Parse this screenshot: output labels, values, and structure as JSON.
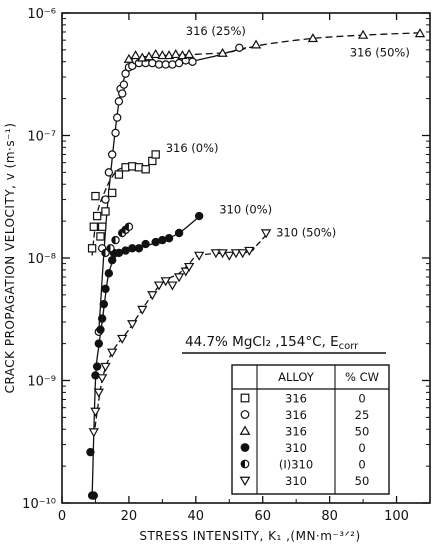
{
  "chart_data": {
    "type": "scatter",
    "title": "",
    "xlabel": "STRESS INTENSITY, K₁ ,(MN·m⁻³ᐟ²)",
    "ylabel": "CRACK PROPAGATION VELOCITY, v (m·s⁻¹)",
    "x_scale": "linear",
    "y_scale": "log",
    "xlim": [
      0,
      110
    ],
    "ylim": [
      1e-10,
      1e-06
    ],
    "grid": false,
    "x_ticks": [
      "0",
      "20",
      "40",
      "60",
      "80",
      "100"
    ],
    "y_ticks": [
      "10⁻¹⁰",
      "10⁻⁹",
      "10⁻⁸",
      "10⁻⁷",
      "10⁻⁶"
    ],
    "condition_label": "44.7% MgCl₂ ,154°C, E",
    "condition_sub": "corr",
    "legend": {
      "placement": "bottom-right",
      "headers": [
        "ALLOY",
        "% CW"
      ],
      "rows": [
        {
          "marker": "square",
          "alloy": "316",
          "cw": "0"
        },
        {
          "marker": "circle-open",
          "alloy": "316",
          "cw": "25"
        },
        {
          "marker": "triangle-up",
          "alloy": "316",
          "cw": "50"
        },
        {
          "marker": "circle-filled",
          "alloy": "310",
          "cw": "0"
        },
        {
          "marker": "circle-half",
          "alloy": "(I)310",
          "cw": "0"
        },
        {
          "marker": "triangle-down",
          "alloy": "310",
          "cw": "50"
        }
      ]
    },
    "series": [
      {
        "name": "316 (0%)",
        "label": "316 (0%)",
        "marker": "square",
        "points": [
          [
            9,
            1.2e-08
          ],
          [
            9.5,
            1.8e-08
          ],
          [
            10,
            3.2e-08
          ],
          [
            10.5,
            2.2e-08
          ],
          [
            11.5,
            1.5e-08
          ],
          [
            12,
            1.8e-08
          ],
          [
            13,
            2.4e-08
          ],
          [
            15,
            3.4e-08
          ],
          [
            17,
            4.8e-08
          ],
          [
            19,
            5.5e-08
          ],
          [
            21,
            5.6e-08
          ],
          [
            23,
            5.5e-08
          ],
          [
            25,
            5.3e-08
          ],
          [
            27,
            6.2e-08
          ],
          [
            28,
            7e-08
          ]
        ],
        "curve": [
          [
            9,
            1.05e-08
          ],
          [
            10.5,
            2.3e-08
          ],
          [
            13,
            3.6e-08
          ],
          [
            15,
            4.6e-08
          ],
          [
            17,
            5.3e-08
          ],
          [
            20,
            5.5e-08
          ],
          [
            24,
            5.5e-08
          ],
          [
            26,
            5.6e-08
          ],
          [
            28,
            6.5e-08
          ],
          [
            29,
            7e-08
          ]
        ]
      },
      {
        "name": "316 (25%)",
        "label": "316 (25%)",
        "marker": "circle-open",
        "points": [
          [
            11,
            2.5e-09
          ],
          [
            12,
            1.2e-08
          ],
          [
            13,
            3e-08
          ],
          [
            14,
            5e-08
          ],
          [
            15,
            7e-08
          ],
          [
            16,
            1.05e-07
          ],
          [
            16.5,
            1.4e-07
          ],
          [
            17,
            1.9e-07
          ],
          [
            17.5,
            2.4e-07
          ],
          [
            18,
            2.2e-07
          ],
          [
            18.5,
            2.6e-07
          ],
          [
            19,
            3.2e-07
          ],
          [
            20,
            3.6e-07
          ],
          [
            21,
            3.7e-07
          ],
          [
            22,
            4.1e-07
          ],
          [
            23,
            3.9e-07
          ],
          [
            25,
            3.9e-07
          ],
          [
            27,
            3.9e-07
          ],
          [
            29,
            3.8e-07
          ],
          [
            31,
            3.8e-07
          ],
          [
            33,
            3.8e-07
          ],
          [
            35,
            3.9e-07
          ],
          [
            37,
            4.1e-07
          ],
          [
            39,
            4e-07
          ],
          [
            53,
            5.2e-07
          ]
        ],
        "curve": [
          [
            11,
            2.5e-09
          ],
          [
            13,
            1.7e-08
          ],
          [
            15,
            6.5e-08
          ],
          [
            17,
            1.85e-07
          ],
          [
            19,
            3.2e-07
          ],
          [
            21,
            3.9e-07
          ],
          [
            24,
            3.9e-07
          ],
          [
            30,
            3.8e-07
          ],
          [
            38,
            4e-07
          ],
          [
            45,
            4.4e-07
          ],
          [
            50,
            4.8e-07
          ],
          [
            55,
            5.2e-07
          ]
        ]
      },
      {
        "name": "316 (50%)",
        "label": "316 (50%)",
        "marker": "triangle-up",
        "points": [
          [
            20,
            4.2e-07
          ],
          [
            22,
            4.5e-07
          ],
          [
            24,
            4.3e-07
          ],
          [
            26,
            4.4e-07
          ],
          [
            28,
            4.6e-07
          ],
          [
            30,
            4.5e-07
          ],
          [
            32,
            4.5e-07
          ],
          [
            34,
            4.6e-07
          ],
          [
            36,
            4.5e-07
          ],
          [
            38,
            4.6e-07
          ],
          [
            48,
            4.7e-07
          ],
          [
            58,
            5.5e-07
          ],
          [
            75,
            6.2e-07
          ],
          [
            90,
            6.6e-07
          ],
          [
            107,
            6.8e-07
          ]
        ],
        "curve": [
          [
            20,
            4.3e-07
          ],
          [
            30,
            4.5e-07
          ],
          [
            40,
            4.6e-07
          ],
          [
            50,
            4.8e-07
          ],
          [
            60,
            5.5e-07
          ],
          [
            75,
            6.2e-07
          ],
          [
            90,
            6.6e-07
          ],
          [
            108,
            6.9e-07
          ]
        ]
      },
      {
        "name": "310 (0%)",
        "label": "310 (0%)",
        "marker": "circle-filled",
        "points": [
          [
            8.5,
            2.6e-10
          ],
          [
            9,
            1.15e-10
          ],
          [
            9.5,
            1.15e-10
          ],
          [
            10,
            1.1e-09
          ],
          [
            10.5,
            1.3e-09
          ],
          [
            11,
            2e-09
          ],
          [
            11.5,
            2.6e-09
          ],
          [
            12,
            3.2e-09
          ],
          [
            12.5,
            4.2e-09
          ],
          [
            13,
            5.6e-09
          ],
          [
            14,
            7.5e-09
          ],
          [
            15,
            9.6e-09
          ],
          [
            15.5,
            1.1e-08
          ],
          [
            17,
            1.1e-08
          ],
          [
            19,
            1.15e-08
          ],
          [
            21,
            1.2e-08
          ],
          [
            23,
            1.2e-08
          ],
          [
            25,
            1.3e-08
          ],
          [
            28,
            1.35e-08
          ],
          [
            30,
            1.4e-08
          ],
          [
            32,
            1.45e-08
          ],
          [
            35,
            1.6e-08
          ],
          [
            41,
            2.2e-08
          ]
        ],
        "curve": [
          [
            9,
            1.1e-10
          ],
          [
            10,
            1e-09
          ],
          [
            11,
            1.9e-09
          ],
          [
            12,
            3e-09
          ],
          [
            13,
            5e-09
          ],
          [
            14,
            7.5e-09
          ],
          [
            16,
            1.02e-08
          ],
          [
            20,
            1.15e-08
          ],
          [
            25,
            1.25e-08
          ],
          [
            30,
            1.4e-08
          ],
          [
            35,
            1.6e-08
          ],
          [
            42,
            2.3e-08
          ]
        ]
      },
      {
        "name": "(I)310 (0%)",
        "label": "",
        "marker": "circle-half",
        "points": [
          [
            13,
            1.1e-08
          ],
          [
            14.5,
            1.2e-08
          ],
          [
            16,
            1.4e-08
          ],
          [
            18,
            1.6e-08
          ],
          [
            19,
            1.7e-08
          ],
          [
            20,
            1.8e-08
          ]
        ],
        "curve": []
      },
      {
        "name": "310 (50%)",
        "label": "310 (50%)",
        "marker": "triangle-down",
        "points": [
          [
            9.5,
            3.8e-10
          ],
          [
            10,
            5.6e-10
          ],
          [
            11,
            8e-10
          ],
          [
            12,
            1.05e-09
          ],
          [
            13,
            1.3e-09
          ],
          [
            15,
            1.7e-09
          ],
          [
            18,
            2.2e-09
          ],
          [
            21,
            2.9e-09
          ],
          [
            24,
            3.8e-09
          ],
          [
            27,
            5e-09
          ],
          [
            29,
            6e-09
          ],
          [
            31,
            6.5e-09
          ],
          [
            33,
            6e-09
          ],
          [
            35,
            7e-09
          ],
          [
            37,
            7.8e-09
          ],
          [
            38,
            8.5e-09
          ],
          [
            41,
            1.05e-08
          ],
          [
            46,
            1.1e-08
          ],
          [
            48,
            1.1e-08
          ],
          [
            50,
            1.05e-08
          ],
          [
            52,
            1.1e-08
          ],
          [
            54,
            1.1e-08
          ],
          [
            56,
            1.15e-08
          ],
          [
            61,
            1.6e-08
          ]
        ],
        "curve": [
          [
            9.5,
            3.5e-10
          ],
          [
            12,
            1e-09
          ],
          [
            15,
            1.7e-09
          ],
          [
            20,
            2.6e-09
          ],
          [
            25,
            4.2e-09
          ],
          [
            30,
            6.3e-09
          ],
          [
            35,
            7.5e-09
          ],
          [
            38,
            9e-09
          ],
          [
            41,
            1.05e-08
          ],
          [
            50,
            1.1e-08
          ],
          [
            56,
            1.12e-08
          ],
          [
            58,
            1.25e-08
          ],
          [
            62,
            1.65e-08
          ]
        ]
      }
    ]
  }
}
